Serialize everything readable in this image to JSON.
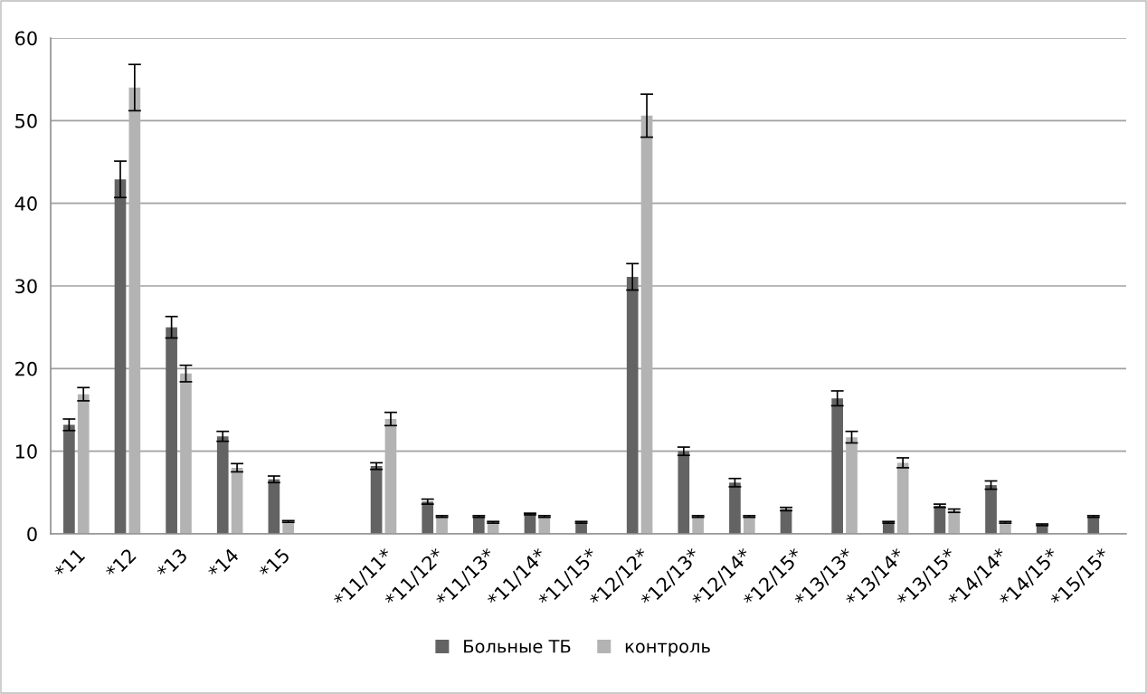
{
  "chart_data": {
    "type": "bar",
    "categories": [
      "*11",
      "*12",
      "*13",
      "*14",
      "*15",
      null,
      "*11/11*",
      "*11/12*",
      "*11/13*",
      "*11/14*",
      "*11/15*",
      "*12/12*",
      "*12/13*",
      "*12/14*",
      "*12/15*",
      "*13/13*",
      "*13/14*",
      "*13/15*",
      "*14/14*",
      "*14/15*",
      "*15/15*"
    ],
    "series": [
      {
        "name": "Больные ТБ",
        "color": "#636363",
        "values": [
          13.2,
          42.9,
          25.0,
          11.8,
          6.6,
          null,
          8.2,
          3.9,
          2.1,
          2.4,
          1.4,
          31.1,
          10.0,
          6.2,
          3.0,
          16.4,
          1.4,
          3.4,
          5.9,
          1.1,
          2.1
        ],
        "errors": [
          0.7,
          2.2,
          1.3,
          0.6,
          0.4,
          null,
          0.4,
          0.3,
          0.1,
          0.1,
          0.1,
          1.6,
          0.5,
          0.5,
          0.2,
          0.9,
          0.1,
          0.2,
          0.5,
          0.1,
          0.1
        ]
      },
      {
        "name": "контроль",
        "color": "#b3b3b3",
        "values": [
          16.9,
          54.0,
          19.4,
          8.0,
          1.5,
          null,
          13.9,
          2.1,
          1.4,
          2.1,
          null,
          50.6,
          2.1,
          2.1,
          null,
          11.7,
          8.6,
          2.8,
          1.4,
          null,
          null
        ],
        "errors": [
          0.8,
          2.8,
          1.0,
          0.5,
          0.1,
          null,
          0.8,
          0.1,
          0.1,
          0.1,
          null,
          2.6,
          0.1,
          0.1,
          null,
          0.7,
          0.6,
          0.2,
          0.1,
          null,
          null
        ]
      }
    ],
    "ylim": [
      0,
      60
    ],
    "yticks": [
      0,
      10,
      20,
      30,
      40,
      50,
      60
    ],
    "grid": "y",
    "legend": "bottom"
  }
}
